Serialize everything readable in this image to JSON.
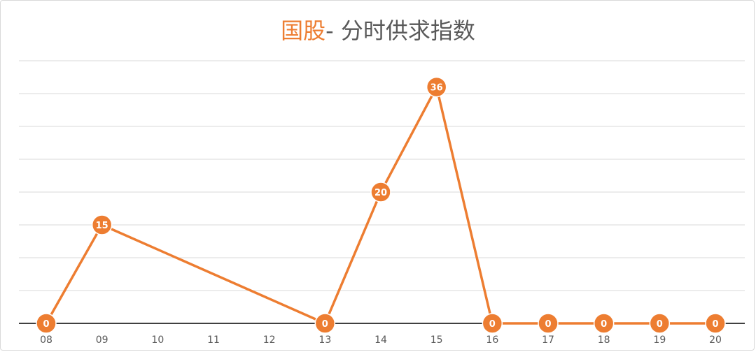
{
  "title": {
    "accent": "国股",
    "rest": "- 分时供求指数"
  },
  "colors": {
    "series": "#ed7d31",
    "grid": "#d9d9d9",
    "axis": "#404040",
    "label": "#595959"
  },
  "chart_data": {
    "type": "line",
    "categories": [
      "08",
      "09",
      "10",
      "11",
      "12",
      "13",
      "14",
      "15",
      "16",
      "17",
      "18",
      "19",
      "20"
    ],
    "series": [
      {
        "values": [
          0,
          15,
          null,
          null,
          null,
          0,
          20,
          36,
          0,
          0,
          0,
          0,
          0
        ],
        "connect_nulls": true,
        "data_labels": true
      }
    ],
    "ylim": [
      0,
      40
    ],
    "grid": true,
    "legend": "none"
  }
}
